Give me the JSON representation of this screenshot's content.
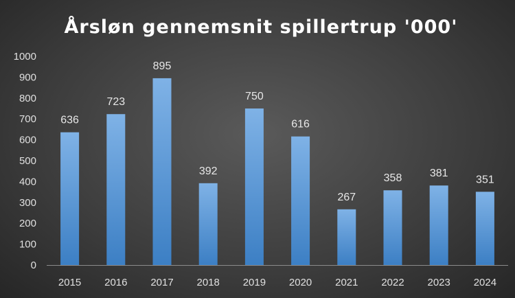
{
  "chart_data": {
    "type": "bar",
    "title": "Årsløn gennemsnit spillertrup '000'",
    "xlabel": "",
    "ylabel": "",
    "categories": [
      "2015",
      "2016",
      "2017",
      "2018",
      "2019",
      "2020",
      "2021",
      "2022",
      "2023",
      "2024"
    ],
    "values": [
      636,
      723,
      895,
      392,
      750,
      616,
      267,
      358,
      381,
      351
    ],
    "ylim": [
      0,
      1000
    ],
    "yticks": [
      0,
      100,
      200,
      300,
      400,
      500,
      600,
      700,
      800,
      900,
      1000
    ],
    "grid": false,
    "legend": "none",
    "data_labels": true,
    "colors": {
      "bar_top": "#7fb2e6",
      "bar_bottom": "#3c7fc4",
      "text": "#e0e0e0",
      "axis": "#8c8c8c"
    }
  }
}
